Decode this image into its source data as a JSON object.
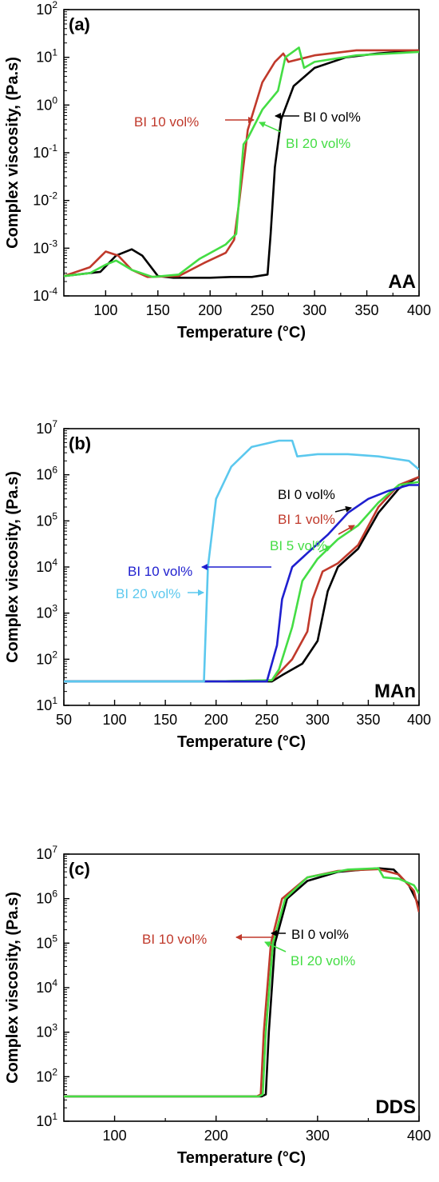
{
  "chart_data": [
    {
      "type": "line",
      "panel_label": "(a)",
      "tag": "AA",
      "xlabel": "Temperature (°C)",
      "ylabel": "Complex viscosity, (Pa.s)",
      "xlim": [
        60,
        400
      ],
      "ylim": [
        0.0001,
        100
      ],
      "yscale": "log",
      "xticks": [
        100,
        150,
        200,
        250,
        300,
        350,
        400
      ],
      "ytick_exponents": [
        -4,
        -3,
        -2,
        -1,
        0,
        1,
        2
      ],
      "series": [
        {
          "name": "BI 0 vol%",
          "color": "#000000",
          "points": [
            [
              60,
              0.00026
            ],
            [
              95,
              0.00032
            ],
            [
              110,
              0.0007
            ],
            [
              125,
              0.00095
            ],
            [
              135,
              0.0007
            ],
            [
              150,
              0.00026
            ],
            [
              165,
              0.00024
            ],
            [
              200,
              0.00024
            ],
            [
              220,
              0.00025
            ],
            [
              240,
              0.00025
            ],
            [
              255,
              0.00028
            ],
            [
              258,
              0.002
            ],
            [
              262,
              0.05
            ],
            [
              268,
              0.5
            ],
            [
              280,
              2.5
            ],
            [
              300,
              6
            ],
            [
              330,
              10
            ],
            [
              360,
              12
            ],
            [
              400,
              14
            ]
          ]
        },
        {
          "name": "BI 10 vol%",
          "color": "#c0392b",
          "points": [
            [
              60,
              0.00026
            ],
            [
              85,
              0.0004
            ],
            [
              100,
              0.00085
            ],
            [
              112,
              0.0007
            ],
            [
              125,
              0.00035
            ],
            [
              140,
              0.00025
            ],
            [
              170,
              0.00026
            ],
            [
              195,
              0.0005
            ],
            [
              215,
              0.0008
            ],
            [
              223,
              0.0015
            ],
            [
              228,
              0.01
            ],
            [
              236,
              0.3
            ],
            [
              250,
              3
            ],
            [
              262,
              8
            ],
            [
              270,
              12
            ],
            [
              275,
              8
            ],
            [
              300,
              11
            ],
            [
              340,
              14
            ],
            [
              400,
              14
            ]
          ]
        },
        {
          "name": "BI 20  vol%",
          "color": "#44dd44",
          "points": [
            [
              60,
              0.00026
            ],
            [
              85,
              0.0003
            ],
            [
              100,
              0.00045
            ],
            [
              110,
              0.00055
            ],
            [
              125,
              0.00035
            ],
            [
              145,
              0.00025
            ],
            [
              170,
              0.00028
            ],
            [
              190,
              0.0006
            ],
            [
              215,
              0.0012
            ],
            [
              225,
              0.002
            ],
            [
              232,
              0.15
            ],
            [
              236,
              0.2
            ],
            [
              250,
              0.8
            ],
            [
              265,
              2
            ],
            [
              272,
              10
            ],
            [
              285,
              16
            ],
            [
              290,
              6
            ],
            [
              300,
              8
            ],
            [
              340,
              11
            ],
            [
              400,
              13
            ]
          ]
        }
      ],
      "annotations": [
        {
          "text": "BI 10 vol%",
          "color": "#c0392b"
        },
        {
          "text": "BI 0 vol%",
          "color": "#000000"
        },
        {
          "text": "BI 20  vol%",
          "color": "#44dd44"
        }
      ]
    },
    {
      "type": "line",
      "panel_label": "(b)",
      "tag": "MAn",
      "xlabel": "Temperature (°C)",
      "ylabel": "Complex viscosity, (Pa.s)",
      "xlim": [
        50,
        400
      ],
      "ylim": [
        10,
        10000000
      ],
      "yscale": "log",
      "xticks": [
        50,
        100,
        150,
        200,
        250,
        300,
        350,
        400
      ],
      "ytick_exponents": [
        1,
        2,
        3,
        4,
        5,
        6,
        7
      ],
      "series": [
        {
          "name": "BI 0 vol%",
          "color": "#000000",
          "points": [
            [
              50,
              33
            ],
            [
              200,
              33
            ],
            [
              255,
              33
            ],
            [
              265,
              45
            ],
            [
              285,
              80
            ],
            [
              300,
              250
            ],
            [
              310,
              3000
            ],
            [
              320,
              10000
            ],
            [
              340,
              25000
            ],
            [
              360,
              150000
            ],
            [
              380,
              500000
            ],
            [
              400,
              900000
            ]
          ]
        },
        {
          "name": "BI 1 vol%",
          "color": "#c0392b",
          "points": [
            [
              50,
              33
            ],
            [
              200,
              33
            ],
            [
              255,
              35
            ],
            [
              262,
              50
            ],
            [
              275,
              100
            ],
            [
              290,
              400
            ],
            [
              295,
              2000
            ],
            [
              305,
              8000
            ],
            [
              320,
              12000
            ],
            [
              340,
              30000
            ],
            [
              360,
              200000
            ],
            [
              380,
              600000
            ],
            [
              400,
              900000
            ]
          ]
        },
        {
          "name": "BI 5 vol%",
          "color": "#44dd44",
          "points": [
            [
              50,
              33
            ],
            [
              200,
              33
            ],
            [
              255,
              35
            ],
            [
              262,
              60
            ],
            [
              275,
              500
            ],
            [
              285,
              5000
            ],
            [
              300,
              15000
            ],
            [
              320,
              40000
            ],
            [
              340,
              80000
            ],
            [
              360,
              250000
            ],
            [
              380,
              600000
            ],
            [
              400,
              700000
            ]
          ]
        },
        {
          "name": "BI 10 vol%",
          "color": "#1f1fcf",
          "points": [
            [
              50,
              33
            ],
            [
              200,
              33
            ],
            [
              250,
              33
            ],
            [
              260,
              200
            ],
            [
              265,
              2000
            ],
            [
              275,
              10000
            ],
            [
              290,
              20000
            ],
            [
              310,
              50000
            ],
            [
              330,
              150000
            ],
            [
              350,
              300000
            ],
            [
              370,
              450000
            ],
            [
              390,
              600000
            ],
            [
              400,
              600000
            ]
          ]
        },
        {
          "name": "BI 20 vol%",
          "color": "#5bc8ee",
          "points": [
            [
              50,
              33
            ],
            [
              180,
              33
            ],
            [
              188,
              33
            ],
            [
              192,
              10000
            ],
            [
              200,
              300000
            ],
            [
              215,
              1500000
            ],
            [
              235,
              4000000
            ],
            [
              262,
              5500000
            ],
            [
              275,
              5500000
            ],
            [
              280,
              2500000
            ],
            [
              300,
              2800000
            ],
            [
              330,
              2800000
            ],
            [
              360,
              2500000
            ],
            [
              390,
              2000000
            ],
            [
              400,
              1300000
            ]
          ]
        }
      ],
      "annotations": [
        {
          "text": "BI 0 vol%",
          "color": "#000000"
        },
        {
          "text": "BI 1 vol%",
          "color": "#c0392b"
        },
        {
          "text": "BI 5 vol%",
          "color": "#44dd44"
        },
        {
          "text": "BI 10 vol%",
          "color": "#1f1fcf"
        },
        {
          "text": "BI 20 vol%",
          "color": "#5bc8ee"
        }
      ]
    },
    {
      "type": "line",
      "panel_label": "(c)",
      "tag": "DDS",
      "xlabel": "Temperature (°C)",
      "ylabel": "Complex viscosity, (Pa.s)",
      "xlim": [
        50,
        400
      ],
      "ylim": [
        10,
        10000000
      ],
      "yscale": "log",
      "xticks": [
        100,
        200,
        300,
        400
      ],
      "ytick_exponents": [
        1,
        2,
        3,
        4,
        5,
        6,
        7
      ],
      "series": [
        {
          "name": "BI 0 vol%",
          "color": "#000000",
          "points": [
            [
              50,
              36
            ],
            [
              245,
              36
            ],
            [
              249,
              40
            ],
            [
              252,
              1000
            ],
            [
              258,
              100000
            ],
            [
              270,
              1000000
            ],
            [
              290,
              2500000
            ],
            [
              320,
              4000000
            ],
            [
              360,
              4800000
            ],
            [
              375,
              4500000
            ],
            [
              390,
              2000000
            ],
            [
              400,
              700000
            ]
          ]
        },
        {
          "name": "BI 10 vol%",
          "color": "#c0392b",
          "points": [
            [
              50,
              36
            ],
            [
              240,
              36
            ],
            [
              244,
              40
            ],
            [
              247,
              1000
            ],
            [
              254,
              100000
            ],
            [
              265,
              1000000
            ],
            [
              290,
              3000000
            ],
            [
              320,
              4200000
            ],
            [
              360,
              4600000
            ],
            [
              380,
              3500000
            ],
            [
              395,
              1500000
            ],
            [
              400,
              500000
            ]
          ]
        },
        {
          "name": "BI 20  vol%",
          "color": "#44dd44",
          "points": [
            [
              50,
              36
            ],
            [
              242,
              36
            ],
            [
              246,
              40
            ],
            [
              249,
              1000
            ],
            [
              256,
              100000
            ],
            [
              268,
              1000000
            ],
            [
              290,
              3000000
            ],
            [
              330,
              4500000
            ],
            [
              360,
              4800000
            ],
            [
              365,
              3000000
            ],
            [
              380,
              2800000
            ],
            [
              395,
              2000000
            ],
            [
              400,
              1300000
            ]
          ]
        }
      ],
      "annotations": [
        {
          "text": "BI 10 vol%",
          "color": "#c0392b"
        },
        {
          "text": "BI 0 vol%",
          "color": "#000000"
        },
        {
          "text": "BI 20  vol%",
          "color": "#44dd44"
        }
      ]
    }
  ]
}
